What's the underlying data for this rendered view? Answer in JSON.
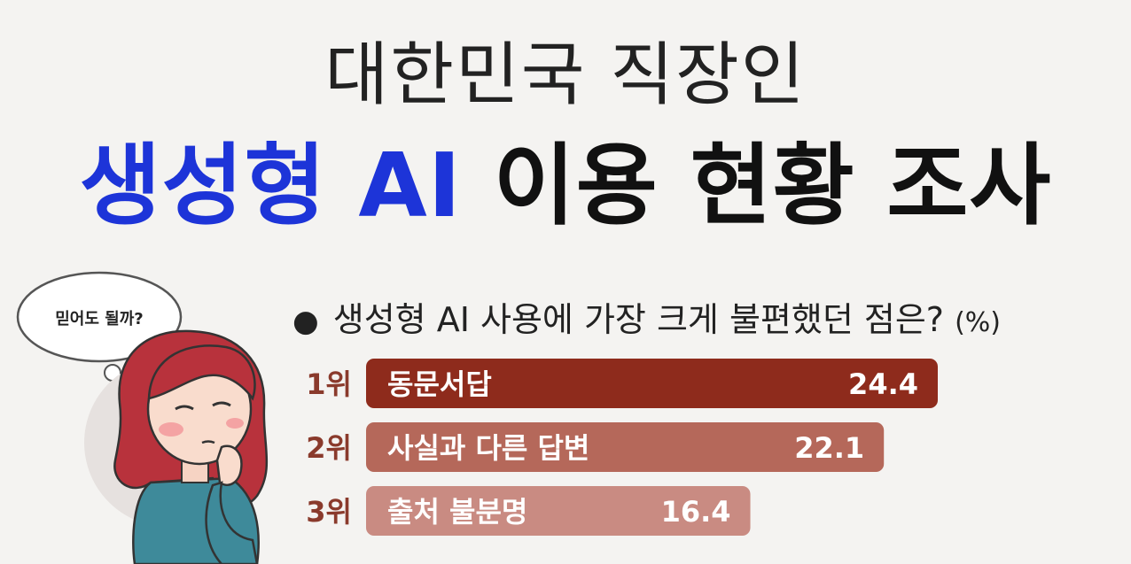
{
  "title": {
    "line1": "대한민국 직장인",
    "line2_accent": "생성형 AI",
    "line2_rest": "이용 현황 조사"
  },
  "question": {
    "bullet": "●",
    "text": "생성형 AI 사용에 가장 크게 불편했던 점은?",
    "unit": "(%)"
  },
  "speech_bubble": "믿어도 될까?",
  "colors": {
    "accent": "#1d34d8",
    "bar_rank1": "#8e2b1c",
    "bar_rank2": "#b5685a",
    "bar_rank3": "#c98b82",
    "rank_text": "#8a3a2c"
  },
  "chart_data": {
    "type": "bar",
    "orientation": "horizontal",
    "title": "생성형 AI 사용에 가장 크게 불편했던 점은?",
    "unit": "(%)",
    "ranks": [
      "1위",
      "2위",
      "3위"
    ],
    "categories": [
      "동문서답",
      "사실과 다른 답변",
      "출처 불분명"
    ],
    "values": [
      24.4,
      22.1,
      16.4
    ],
    "value_labels": [
      "24.4",
      "22.1",
      "16.4"
    ],
    "xlim": [
      0,
      24.4
    ],
    "grid": false,
    "legend": "none"
  }
}
